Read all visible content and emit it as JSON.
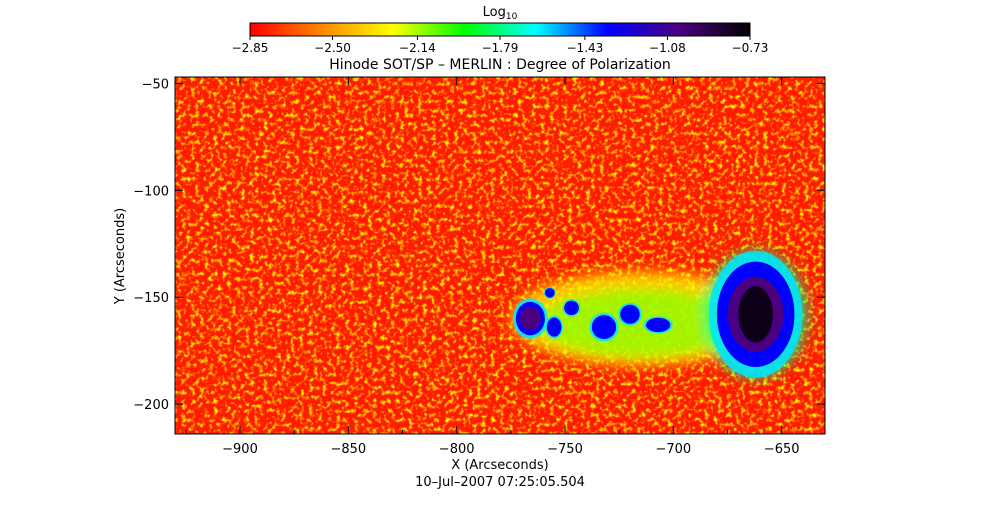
{
  "chart_data": {
    "type": "heatmap",
    "title": "Hinode SOT/SP – MERLIN : Degree of Polarization",
    "xlabel": "X (Arcseconds)",
    "ylabel": "Y (Arcseconds)",
    "date_label": "10–Jul–2007 07:25:05.504",
    "xlim": [
      -930,
      -630
    ],
    "ylim": [
      -214,
      -47
    ],
    "x_ticks": [
      -900,
      -850,
      -800,
      -750,
      -700,
      -650
    ],
    "y_ticks": [
      -50,
      -100,
      -150,
      -200
    ],
    "x_tick_labels": [
      "−900",
      "−850",
      "−800",
      "−750",
      "−700",
      "−650"
    ],
    "y_tick_labels": [
      "−50",
      "−100",
      "−150",
      "−200"
    ],
    "colorbar": {
      "label_base": "Log",
      "label_sub": "10",
      "range": [
        -2.85,
        -0.73
      ],
      "ticks": [
        -2.85,
        -2.5,
        -2.14,
        -1.79,
        -1.43,
        -1.08,
        -0.73
      ],
      "tick_labels": [
        "−2.85",
        "−2.50",
        "−2.14",
        "−1.79",
        "−1.43",
        "−1.08",
        "−0.73"
      ],
      "colormap": [
        "#ff0000",
        "#ff8800",
        "#ffff00",
        "#00ff00",
        "#00ffff",
        "#0000ff",
        "#4b0082",
        "#000000"
      ]
    },
    "features": [
      {
        "x": -662,
        "y": -158,
        "rx": 16,
        "ry": 22,
        "value": -0.9
      },
      {
        "x": -766,
        "y": -160,
        "rx": 6,
        "ry": 7,
        "value": -1.1
      },
      {
        "x": -732,
        "y": -164,
        "rx": 5,
        "ry": 5,
        "value": -1.2
      },
      {
        "x": -720,
        "y": -158,
        "rx": 4,
        "ry": 4,
        "value": -1.3
      },
      {
        "x": -707,
        "y": -163,
        "rx": 5,
        "ry": 3,
        "value": -1.4
      },
      {
        "x": -755,
        "y": -164,
        "rx": 3,
        "ry": 4,
        "value": -1.3
      },
      {
        "x": -747,
        "y": -155,
        "rx": 3,
        "ry": 3,
        "value": -1.4
      },
      {
        "x": -757,
        "y": -148,
        "rx": 2,
        "ry": 2,
        "value": -1.4
      }
    ]
  }
}
